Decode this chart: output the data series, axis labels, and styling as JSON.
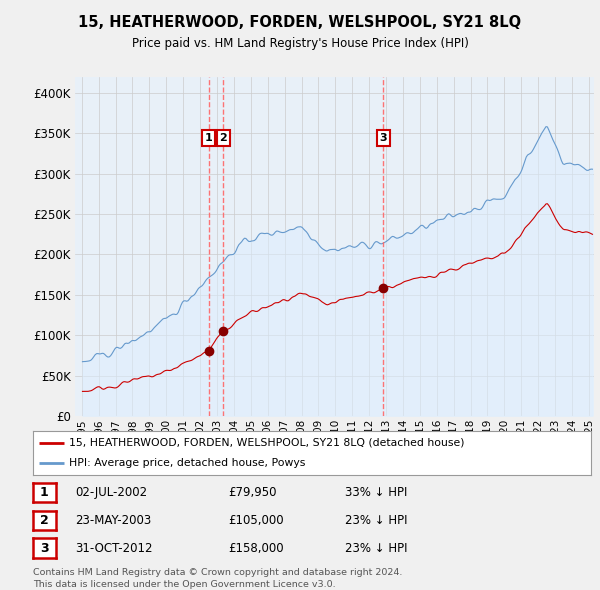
{
  "title": "15, HEATHERWOOD, FORDEN, WELSHPOOL, SY21 8LQ",
  "subtitle": "Price paid vs. HM Land Registry's House Price Index (HPI)",
  "legend_label_red": "15, HEATHERWOOD, FORDEN, WELSHPOOL, SY21 8LQ (detached house)",
  "legend_label_blue": "HPI: Average price, detached house, Powys",
  "footer_line1": "Contains HM Land Registry data © Crown copyright and database right 2024.",
  "footer_line2": "This data is licensed under the Open Government Licence v3.0.",
  "transactions": [
    {
      "num": 1,
      "date": "02-JUL-2002",
      "price": "£79,950",
      "note": "33% ↓ HPI",
      "x_year": 2002.5,
      "y_val": 79950
    },
    {
      "num": 2,
      "date": "23-MAY-2003",
      "price": "£105,000",
      "note": "23% ↓ HPI",
      "x_year": 2003.37,
      "y_val": 105000
    },
    {
      "num": 3,
      "date": "31-OCT-2012",
      "price": "£158,000",
      "note": "23% ↓ HPI",
      "x_year": 2012.83,
      "y_val": 158000
    }
  ],
  "vline_x": [
    2002.5,
    2003.37,
    2012.83
  ],
  "ylim": [
    0,
    420000
  ],
  "xlim": [
    1994.6,
    2025.3
  ],
  "yticks": [
    0,
    50000,
    100000,
    150000,
    200000,
    250000,
    300000,
    350000,
    400000
  ],
  "ytick_labels": [
    "£0",
    "£50K",
    "£100K",
    "£150K",
    "£200K",
    "£250K",
    "£300K",
    "£350K",
    "£400K"
  ],
  "xtick_years": [
    1995,
    1996,
    1997,
    1998,
    1999,
    2000,
    2001,
    2002,
    2003,
    2004,
    2005,
    2006,
    2007,
    2008,
    2009,
    2010,
    2011,
    2012,
    2013,
    2014,
    2015,
    2016,
    2017,
    2018,
    2019,
    2020,
    2021,
    2022,
    2023,
    2024,
    2025
  ],
  "red_color": "#cc0000",
  "blue_color": "#6699cc",
  "blue_fill_color": "#ddeeff",
  "vline_color": "#ff6666",
  "background_color": "#f0f0f0",
  "plot_bg_color": "#e8f0f8",
  "grid_color": "#cccccc",
  "marker_color": "#880000"
}
